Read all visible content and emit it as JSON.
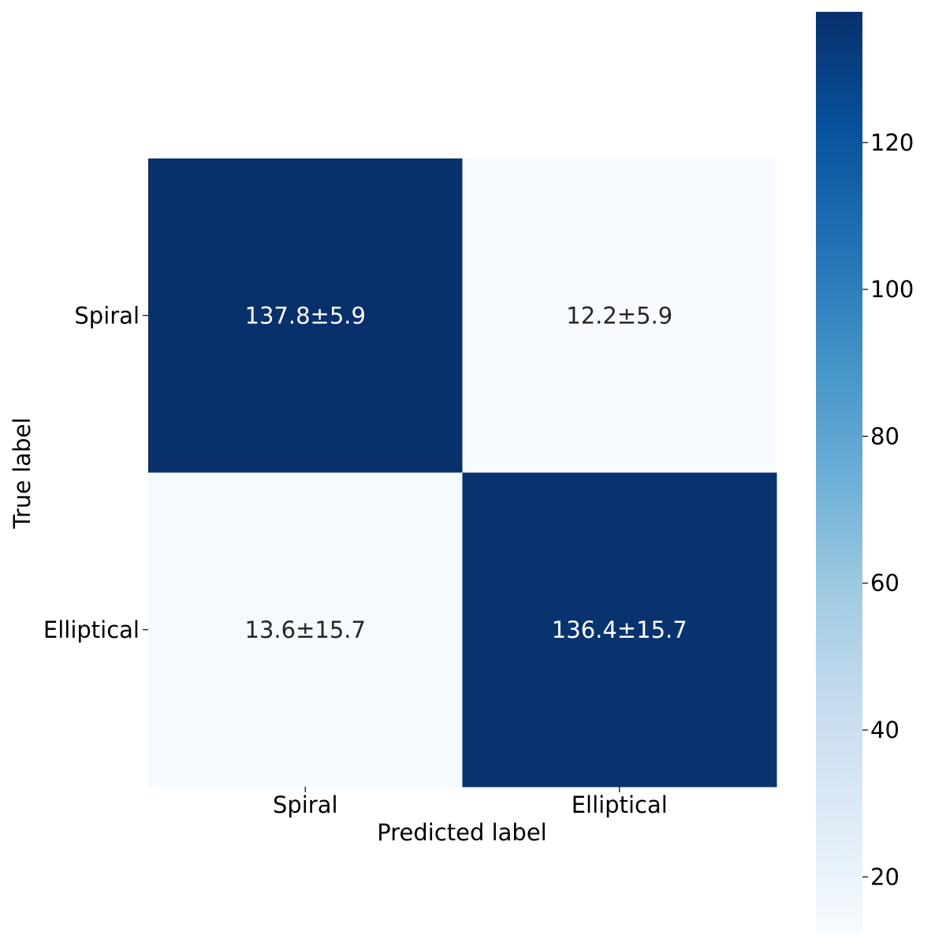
{
  "chart_data": {
    "type": "heatmap",
    "title": "",
    "xlabel": "Predicted label",
    "ylabel": "True label",
    "x_categories": [
      "Spiral",
      "Elliptical"
    ],
    "y_categories": [
      "Spiral",
      "Elliptical"
    ],
    "values": [
      [
        137.8,
        12.2
      ],
      [
        13.6,
        136.4
      ]
    ],
    "cell_labels": [
      [
        "137.8±5.9",
        "12.2±5.9"
      ],
      [
        "13.6±15.7",
        "136.4±15.7"
      ]
    ],
    "colormap": "Blues",
    "colorbar": {
      "range": [
        12.2,
        137.8
      ],
      "ticks": [
        20,
        40,
        60,
        80,
        100,
        120
      ],
      "tick_labels": [
        "20",
        "40",
        "60",
        "80",
        "100",
        "120"
      ]
    },
    "colors": {
      "dark_cell": "#08306b",
      "light_cell": "#f7fbff",
      "dark_text": "#ffffff",
      "light_text": "#262626"
    }
  }
}
